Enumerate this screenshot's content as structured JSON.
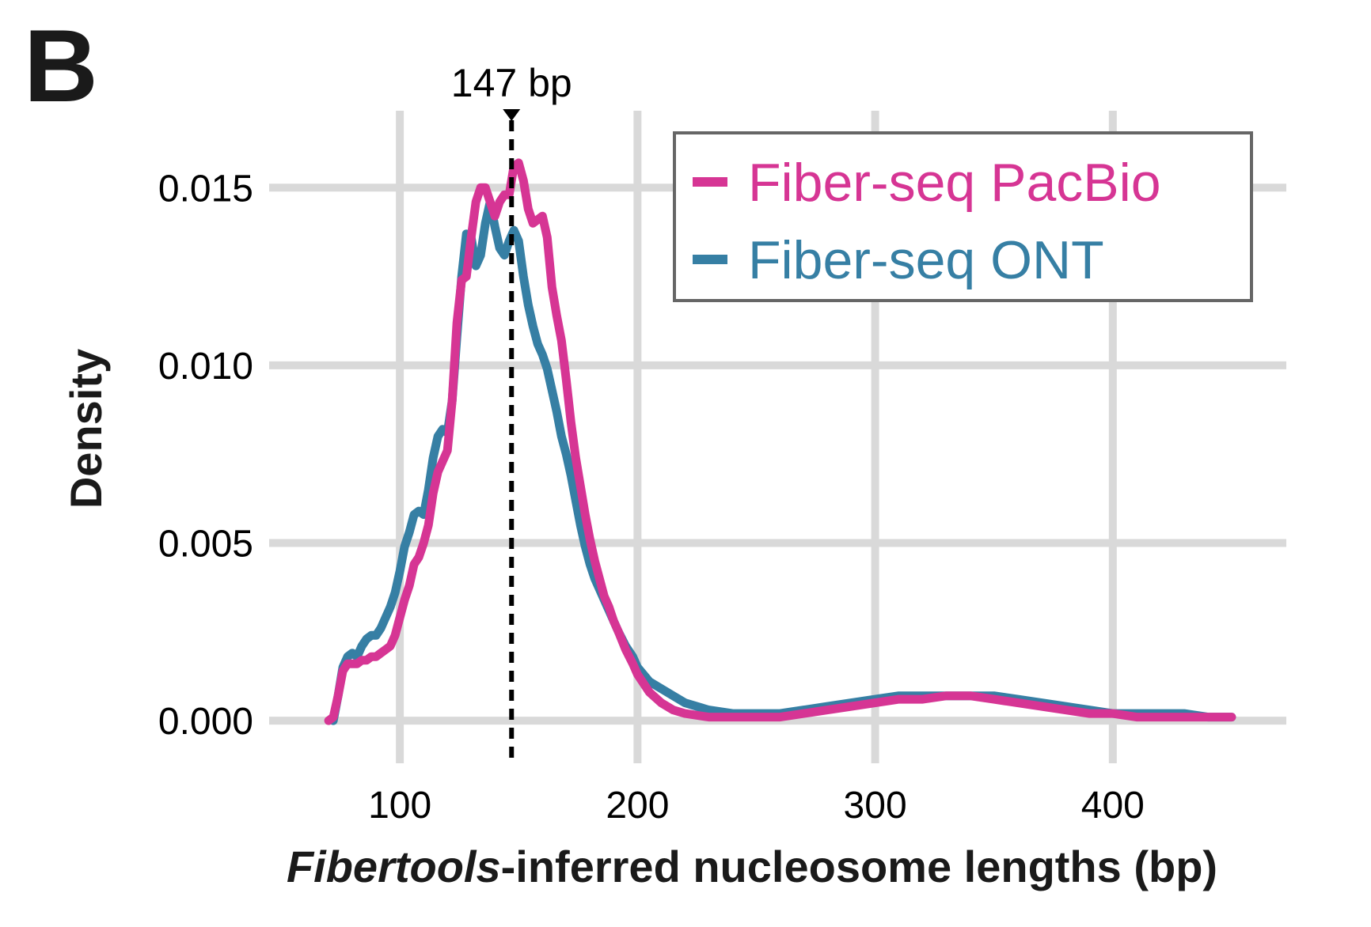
{
  "panel_label": "B",
  "chart_data": {
    "type": "line",
    "xlabel_italic": "Fibertools",
    "xlabel_rest": "-inferred nucleosome lengths (bp)",
    "ylabel": "Density",
    "xlim": [
      45,
      473
    ],
    "ylim": [
      -0.0012,
      0.0175
    ],
    "x_ticks": [
      100,
      200,
      300,
      400
    ],
    "x_tick_labels": [
      "100",
      "200",
      "300",
      "400"
    ],
    "y_ticks": [
      0.0,
      0.005,
      0.01,
      0.015
    ],
    "y_tick_labels": [
      "0.000",
      "0.005",
      "0.010",
      "0.015"
    ],
    "grid": true,
    "legend_position": "top-right",
    "annotation": {
      "x": 147,
      "label": "147 bp"
    },
    "series": [
      {
        "name": "Fiber-seq PacBio",
        "color": "#d63594",
        "x": [
          70,
          72,
          74,
          76,
          78,
          80,
          82,
          84,
          86,
          88,
          90,
          92,
          94,
          96,
          98,
          100,
          102,
          104,
          106,
          108,
          110,
          112,
          114,
          116,
          118,
          120,
          122,
          124,
          126,
          128,
          130,
          132,
          134,
          136,
          138,
          140,
          142,
          144,
          146,
          148,
          150,
          152,
          154,
          156,
          158,
          160,
          162,
          164,
          166,
          168,
          170,
          172,
          174,
          176,
          178,
          180,
          182,
          184,
          186,
          188,
          190,
          192,
          195,
          198,
          200,
          205,
          210,
          215,
          220,
          230,
          240,
          250,
          260,
          270,
          280,
          290,
          300,
          310,
          320,
          330,
          340,
          350,
          360,
          370,
          380,
          390,
          400,
          410,
          420,
          430,
          440,
          450
        ],
        "y": [
          0.0,
          0.0001,
          0.0007,
          0.0014,
          0.0016,
          0.0016,
          0.0016,
          0.0017,
          0.0017,
          0.0018,
          0.0018,
          0.0019,
          0.002,
          0.0021,
          0.0024,
          0.0029,
          0.0034,
          0.0038,
          0.0044,
          0.0046,
          0.005,
          0.0055,
          0.0064,
          0.007,
          0.0073,
          0.0076,
          0.009,
          0.0112,
          0.0124,
          0.0125,
          0.0136,
          0.0146,
          0.015,
          0.015,
          0.0146,
          0.0142,
          0.0146,
          0.0148,
          0.0148,
          0.0156,
          0.0157,
          0.0152,
          0.0144,
          0.014,
          0.0141,
          0.0142,
          0.0136,
          0.0122,
          0.0114,
          0.0107,
          0.0096,
          0.0084,
          0.0074,
          0.0066,
          0.0058,
          0.0051,
          0.0045,
          0.004,
          0.0035,
          0.0032,
          0.0028,
          0.0025,
          0.002,
          0.0016,
          0.0013,
          0.0008,
          0.0005,
          0.0003,
          0.0002,
          0.0001,
          0.0001,
          0.0001,
          0.0001,
          0.0002,
          0.0003,
          0.0004,
          0.0005,
          0.0006,
          0.0006,
          0.0007,
          0.0007,
          0.0006,
          0.0005,
          0.0004,
          0.0003,
          0.0002,
          0.0002,
          0.0001,
          0.0001,
          0.0001,
          0.0001,
          0.0001
        ]
      },
      {
        "name": "Fiber-seq ONT",
        "color": "#367fa4",
        "x": [
          72,
          74,
          76,
          78,
          80,
          82,
          84,
          86,
          88,
          90,
          92,
          94,
          96,
          98,
          100,
          102,
          104,
          106,
          108,
          110,
          112,
          114,
          116,
          118,
          120,
          122,
          124,
          126,
          128,
          130,
          132,
          134,
          136,
          138,
          140,
          142,
          144,
          146,
          148,
          150,
          152,
          154,
          156,
          158,
          160,
          162,
          164,
          166,
          168,
          170,
          172,
          174,
          176,
          178,
          180,
          182,
          184,
          186,
          188,
          190,
          192,
          195,
          198,
          200,
          205,
          210,
          215,
          220,
          230,
          240,
          250,
          260,
          270,
          280,
          290,
          300,
          310,
          320,
          330,
          340,
          350,
          360,
          370,
          380,
          390,
          400,
          410,
          420,
          430,
          440,
          450
        ],
        "y": [
          0.0,
          0.0007,
          0.0015,
          0.0018,
          0.0019,
          0.0018,
          0.0021,
          0.0023,
          0.0024,
          0.0024,
          0.0026,
          0.0029,
          0.0032,
          0.0036,
          0.0042,
          0.0049,
          0.0053,
          0.0058,
          0.0059,
          0.0058,
          0.0065,
          0.0074,
          0.008,
          0.0082,
          0.0081,
          0.009,
          0.0108,
          0.0125,
          0.0137,
          0.0136,
          0.0128,
          0.0131,
          0.014,
          0.0146,
          0.0139,
          0.0133,
          0.0131,
          0.0135,
          0.0138,
          0.0135,
          0.0125,
          0.0117,
          0.0111,
          0.0106,
          0.0103,
          0.0099,
          0.0093,
          0.0087,
          0.008,
          0.0075,
          0.0069,
          0.0062,
          0.0055,
          0.0049,
          0.0044,
          0.004,
          0.0037,
          0.0034,
          0.0031,
          0.0028,
          0.0025,
          0.0021,
          0.0018,
          0.0015,
          0.0011,
          0.0009,
          0.0007,
          0.0005,
          0.0003,
          0.0002,
          0.0002,
          0.0002,
          0.0003,
          0.0004,
          0.0005,
          0.0006,
          0.0007,
          0.0007,
          0.0007,
          0.0007,
          0.0007,
          0.0006,
          0.0005,
          0.0004,
          0.0003,
          0.0002,
          0.0002,
          0.0002,
          0.0002,
          0.0001,
          0.0001
        ]
      }
    ]
  }
}
